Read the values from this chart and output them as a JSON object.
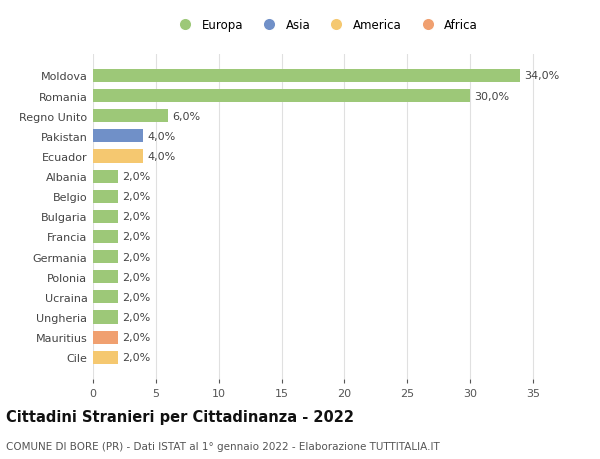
{
  "categories": [
    "Cile",
    "Mauritius",
    "Ungheria",
    "Ucraina",
    "Polonia",
    "Germania",
    "Francia",
    "Bulgaria",
    "Belgio",
    "Albania",
    "Ecuador",
    "Pakistan",
    "Regno Unito",
    "Romania",
    "Moldova"
  ],
  "values": [
    2.0,
    2.0,
    2.0,
    2.0,
    2.0,
    2.0,
    2.0,
    2.0,
    2.0,
    2.0,
    4.0,
    4.0,
    6.0,
    30.0,
    34.0
  ],
  "colors": [
    "#f5c870",
    "#f0a070",
    "#9dc878",
    "#9dc878",
    "#9dc878",
    "#9dc878",
    "#9dc878",
    "#9dc878",
    "#9dc878",
    "#9dc878",
    "#f5c870",
    "#7090c8",
    "#9dc878",
    "#9dc878",
    "#9dc878"
  ],
  "labels": [
    "2,0%",
    "2,0%",
    "2,0%",
    "2,0%",
    "2,0%",
    "2,0%",
    "2,0%",
    "2,0%",
    "2,0%",
    "2,0%",
    "4,0%",
    "4,0%",
    "6,0%",
    "30,0%",
    "34,0%"
  ],
  "legend": [
    {
      "label": "Europa",
      "color": "#9dc878"
    },
    {
      "label": "Asia",
      "color": "#7090c8"
    },
    {
      "label": "America",
      "color": "#f5c870"
    },
    {
      "label": "Africa",
      "color": "#f0a070"
    }
  ],
  "title_main": "Cittadini Stranieri per Cittadinanza - 2022",
  "title_sub": "COMUNE DI BORE (PR) - Dati ISTAT al 1° gennaio 2022 - Elaborazione TUTTITALIA.IT",
  "xlim": [
    0,
    37
  ],
  "xticks": [
    0,
    5,
    10,
    15,
    20,
    25,
    30,
    35
  ],
  "background_color": "#ffffff",
  "grid_color": "#e0e0e0",
  "bar_height": 0.65,
  "label_fontsize": 8,
  "tick_fontsize": 8,
  "title_fontsize": 10.5,
  "sub_fontsize": 7.5
}
